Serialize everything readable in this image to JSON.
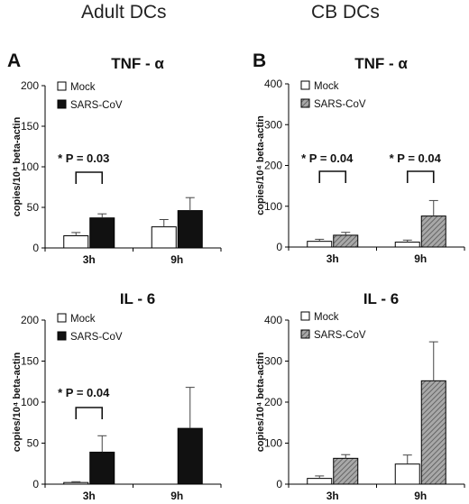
{
  "columns": {
    "left_title": "Adult DCs",
    "right_title": "CB DCs"
  },
  "panel_letters": {
    "a": "A",
    "b": "B"
  },
  "colors": {
    "mock_fill": "#ffffff",
    "sars_solid": "#111111",
    "sars_hatch": "#8a8a8a",
    "axis": "#000000"
  },
  "chart_data": [
    {
      "type": "bar",
      "id": "adult-tnf",
      "title": "TNF - α",
      "ylabel": "copies/10⁴ beta-actin",
      "categories": [
        "3h",
        "9h"
      ],
      "ylim": [
        0,
        200
      ],
      "yticks": [
        0,
        50,
        100,
        150,
        200
      ],
      "legend": [
        "Mock",
        "SARS-CoV"
      ],
      "sars_style": "solid",
      "series": [
        {
          "name": "Mock",
          "values": [
            15,
            26
          ],
          "errors": [
            4,
            9
          ]
        },
        {
          "name": "SARS-CoV",
          "values": [
            37,
            46
          ],
          "errors": [
            5,
            16
          ]
        }
      ],
      "annotations": [
        {
          "text": "* P = 0.03",
          "category": "3h"
        }
      ]
    },
    {
      "type": "bar",
      "id": "cb-tnf",
      "title": "TNF - α",
      "ylabel": "copies/10⁴ beta-actin",
      "categories": [
        "3h",
        "9h"
      ],
      "ylim": [
        0,
        400
      ],
      "yticks": [
        0,
        100,
        200,
        300,
        400
      ],
      "legend": [
        "Mock",
        "SARS-CoV"
      ],
      "sars_style": "hatched",
      "series": [
        {
          "name": "Mock",
          "values": [
            14,
            12
          ],
          "errors": [
            5,
            5
          ]
        },
        {
          "name": "SARS-CoV",
          "values": [
            29,
            76
          ],
          "errors": [
            7,
            38
          ]
        }
      ],
      "annotations": [
        {
          "text": "* P = 0.04",
          "category": "3h"
        },
        {
          "text": "* P = 0.04",
          "category": "9h"
        }
      ]
    },
    {
      "type": "bar",
      "id": "adult-il6",
      "title": "IL - 6",
      "ylabel": "copies/10⁴ beta-actin",
      "categories": [
        "3h",
        "9h"
      ],
      "ylim": [
        0,
        200
      ],
      "yticks": [
        0,
        50,
        100,
        150,
        200
      ],
      "legend": [
        "Mock",
        "SARS-CoV"
      ],
      "sars_style": "solid",
      "series": [
        {
          "name": "Mock",
          "values": [
            2,
            0
          ],
          "errors": [
            1,
            0
          ]
        },
        {
          "name": "SARS-CoV",
          "values": [
            39,
            68
          ],
          "errors": [
            20,
            50
          ]
        }
      ],
      "annotations": [
        {
          "text": "* P = 0.04",
          "category": "3h"
        }
      ]
    },
    {
      "type": "bar",
      "id": "cb-il6",
      "title": "IL - 6",
      "ylabel": "copies/10⁴ beta-actin",
      "categories": [
        "3h",
        "9h"
      ],
      "ylim": [
        0,
        400
      ],
      "yticks": [
        0,
        100,
        200,
        300,
        400
      ],
      "legend": [
        "Mock",
        "SARS-CoV"
      ],
      "sars_style": "hatched",
      "series": [
        {
          "name": "Mock",
          "values": [
            14,
            49
          ],
          "errors": [
            6,
            22
          ]
        },
        {
          "name": "SARS-CoV",
          "values": [
            63,
            252
          ],
          "errors": [
            9,
            95
          ]
        }
      ],
      "annotations": []
    }
  ]
}
